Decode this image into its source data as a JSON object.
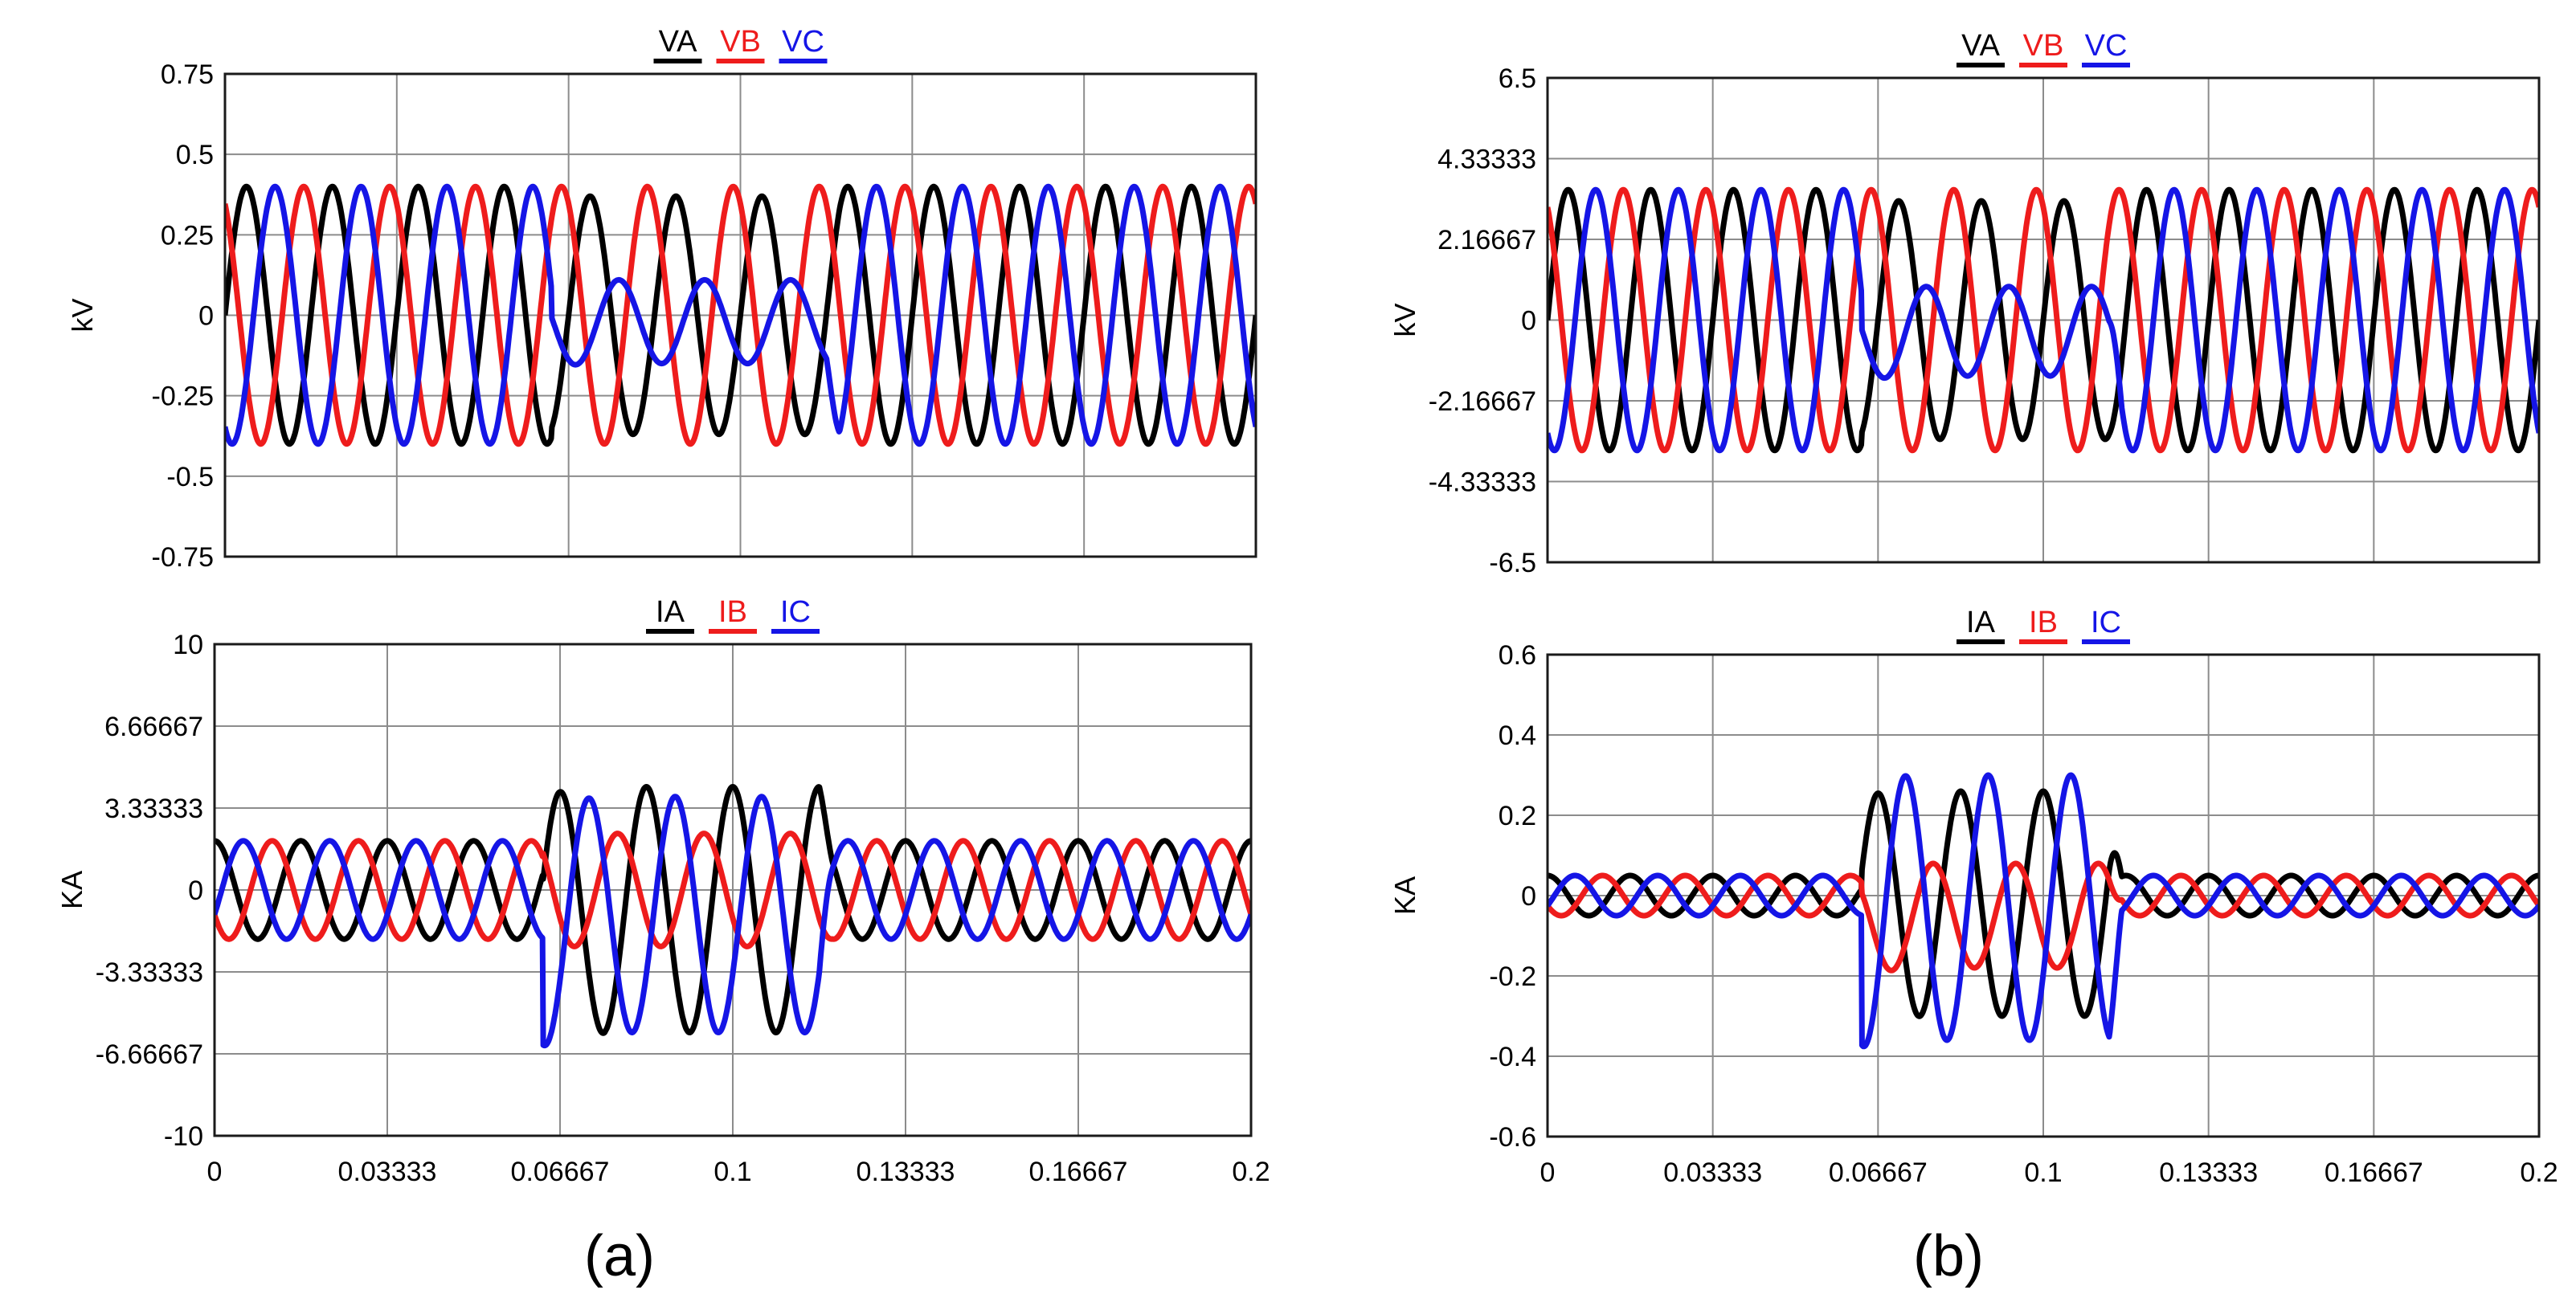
{
  "chart_data": [
    {
      "type": "line",
      "panel": "a",
      "position": "top",
      "ylabel": "kV",
      "xlim": [
        0,
        0.2
      ],
      "ylim": [
        -0.75,
        0.75
      ],
      "x_ticks": [
        "0",
        "0.03333",
        "0.06667",
        "0.1",
        "0.13333",
        "0.16667",
        "0.2"
      ],
      "y_ticks": [
        "0.75",
        "0.5",
        "0.25",
        "0",
        "-0.25",
        "-0.5",
        "-0.75"
      ],
      "grid": true,
      "legend_placement": "top-center",
      "series": [
        {
          "name": "VA",
          "color": "#000000",
          "phase_deg": 0
        },
        {
          "name": "VB",
          "color": "#ee1c1c",
          "phase_deg": 120
        },
        {
          "name": "VC",
          "color": "#1515e6",
          "phase_deg": -120
        }
      ],
      "frequency_hz": 60,
      "amplitude": 0.4,
      "fault_interval": [
        0.0633,
        0.1167
      ],
      "fault_values": {
        "VA": 0.37,
        "VB": 0.4,
        "VC": 0.13
      },
      "fault_offsets": {
        "VA": 0,
        "VB": 0,
        "VC": -0.02
      }
    },
    {
      "type": "line",
      "panel": "a",
      "position": "bottom",
      "ylabel": "KA",
      "xlim": [
        0,
        0.2
      ],
      "ylim": [
        -10,
        10
      ],
      "x_ticks": [
        "0",
        "0.03333",
        "0.06667",
        "0.1",
        "0.13333",
        "0.16667",
        "0.2"
      ],
      "y_ticks": [
        "10",
        "6.66667",
        "3.33333",
        "0",
        "-3.33333",
        "-6.66667",
        "-10"
      ],
      "grid": true,
      "legend_placement": "top-center",
      "series": [
        {
          "name": "IA",
          "color": "#000000",
          "phase_deg": 90
        },
        {
          "name": "IB",
          "color": "#ee1c1c",
          "phase_deg": 210
        },
        {
          "name": "IC",
          "color": "#1515e6",
          "phase_deg": -30
        }
      ],
      "frequency_hz": 60,
      "amplitude": 2,
      "fault_interval": [
        0.0633,
        0.1167
      ],
      "fault_values": {
        "IA": 5,
        "IB": 2.3,
        "IC": 4.8
      },
      "fault_offsets": {
        "IA": -0.8,
        "IB": 0,
        "IC": -1.0
      }
    },
    {
      "type": "line",
      "panel": "b",
      "position": "top",
      "ylabel": "kV",
      "xlim": [
        0,
        0.2
      ],
      "ylim": [
        -6.5,
        6.5
      ],
      "x_ticks": [
        "0",
        "0.03333",
        "0.06667",
        "0.1",
        "0.13333",
        "0.16667",
        "0.2"
      ],
      "y_ticks": [
        "6.5",
        "4.33333",
        "2.16667",
        "0",
        "-2.16667",
        "-4.33333",
        "-6.5"
      ],
      "grid": true,
      "legend_placement": "top-center",
      "series": [
        {
          "name": "VA",
          "color": "#000000",
          "phase_deg": 0
        },
        {
          "name": "VB",
          "color": "#ee1c1c",
          "phase_deg": 120
        },
        {
          "name": "VC",
          "color": "#1515e6",
          "phase_deg": -120
        }
      ],
      "frequency_hz": 60,
      "amplitude": 3.5,
      "fault_interval": [
        0.0633,
        0.1133
      ],
      "fault_values": {
        "VA": 3.2,
        "VB": 3.5,
        "VC": 1.2
      },
      "fault_offsets": {
        "VA": 0,
        "VB": 0,
        "VC": -0.3
      }
    },
    {
      "type": "line",
      "panel": "b",
      "position": "bottom",
      "ylabel": "KA",
      "xlim": [
        0,
        0.2
      ],
      "ylim": [
        -0.6,
        0.6
      ],
      "x_ticks": [
        "0",
        "0.03333",
        "0.06667",
        "0.1",
        "0.13333",
        "0.16667",
        "0.2"
      ],
      "y_ticks": [
        "0.6",
        "0.4",
        "0.2",
        "0",
        "-0.2",
        "-0.4",
        "-0.6"
      ],
      "grid": true,
      "legend_placement": "top-center",
      "series": [
        {
          "name": "IA",
          "color": "#000000",
          "phase_deg": 90
        },
        {
          "name": "IB",
          "color": "#ee1c1c",
          "phase_deg": 210
        },
        {
          "name": "IC",
          "color": "#1515e6",
          "phase_deg": -30
        }
      ],
      "frequency_hz": 60,
      "amplitude": 0.05,
      "fault_interval": [
        0.0633,
        0.1133
      ],
      "fault_values": {
        "IA": 0.28,
        "IB": 0.13,
        "IC": 0.33
      },
      "fault_offsets": {
        "IA": -0.02,
        "IB": -0.05,
        "IC": -0.03
      }
    }
  ],
  "captions": {
    "a": "(a)",
    "b": "(b)"
  }
}
